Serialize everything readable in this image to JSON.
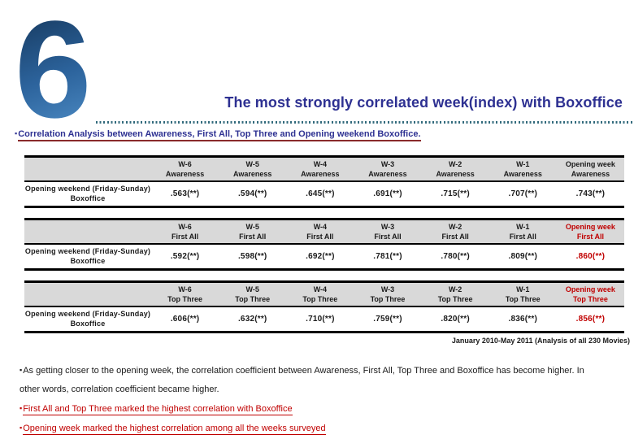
{
  "slide": {
    "number": "6",
    "title": "The most strongly correlated week(index) with Boxoffice",
    "subtitle": "Correlation Analysis between Awareness, First All, Top Three and Opening weekend Boxoffice.",
    "footnote": "January 2010-May 2011 (Analysis of all 230 Movies)",
    "bullets": [
      {
        "text": "As getting closer to the opening week, the correlation coefficient between Awareness, First All, Top Three and Boxoffice has become higher. In other words, correlation coefficient became higher.",
        "emphasis": false
      },
      {
        "text": "First All and Top Three marked the highest correlation with Boxoffice",
        "emphasis": true
      },
      {
        "text": "Opening week marked the highest correlation among all the weeks surveyed",
        "emphasis": true
      }
    ]
  },
  "tables": [
    {
      "measure": "Awareness",
      "row_label": [
        "Opening weekend (Friday-Sunday)",
        "Boxoffice"
      ],
      "columns": [
        "W-6",
        "W-5",
        "W-4",
        "W-3",
        "W-2",
        "W-1",
        "Opening week"
      ],
      "values": [
        ".563(**)",
        ".594(**)",
        ".645(**)",
        ".691(**)",
        ".715(**)",
        ".707(**)",
        ".743(**)"
      ],
      "highlight_last": false
    },
    {
      "measure": "First All",
      "row_label": [
        "Opening weekend (Friday-Sunday)",
        "Boxoffice"
      ],
      "columns": [
        "W-6",
        "W-5",
        "W-4",
        "W-3",
        "W-2",
        "W-1",
        "Opening week"
      ],
      "values": [
        ".592(**)",
        ".598(**)",
        ".692(**)",
        ".781(**)",
        ".780(**)",
        ".809(**)",
        ".860(**)"
      ],
      "highlight_last": true
    },
    {
      "measure": "Top Three",
      "row_label": [
        "Opening weekend (Friday-Sunday)",
        "Boxoffice"
      ],
      "columns": [
        "W-6",
        "W-5",
        "W-4",
        "W-3",
        "W-2",
        "W-1",
        "Opening week"
      ],
      "values": [
        ".606(**)",
        ".632(**)",
        ".710(**)",
        ".759(**)",
        ".820(**)",
        ".836(**)",
        ".856(**)"
      ],
      "highlight_last": true
    }
  ],
  "colors": {
    "title_blue": "#2E3192",
    "accent_red": "#C00000",
    "header_gray": "#D9D9D9",
    "dotted_rule_teal": "#336B7D",
    "subtitle_underline_maroon": "#8A2A2B",
    "number_gradient_top": "#173B61",
    "number_gradient_bottom": "#4A88C1"
  }
}
